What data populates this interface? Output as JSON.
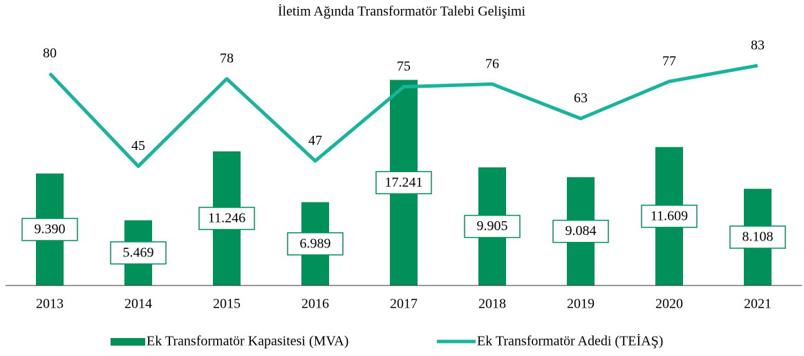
{
  "chart_data": {
    "type": "bar",
    "title": "İletim Ağında Transformatör Talebi Gelişimi",
    "categories": [
      "2013",
      "2014",
      "2015",
      "2016",
      "2017",
      "2018",
      "2019",
      "2020",
      "2021"
    ],
    "series": [
      {
        "name": "Ek Transformatör Kapasitesi (MVA)",
        "type": "bar",
        "color": "#00905a",
        "values": [
          9390,
          5469,
          11246,
          6989,
          17241,
          9905,
          9084,
          11609,
          8108
        ],
        "value_labels": [
          "9.390",
          "5.469",
          "11.246",
          "6.989",
          "17.241",
          "9.905",
          "9.084",
          "11.609",
          "8.108"
        ]
      },
      {
        "name": "Ek Transformatör Adedi (TEİAŞ)",
        "type": "line",
        "axis": "y2",
        "color": "#1ab39c",
        "values": [
          80,
          45,
          78,
          47,
          75,
          76,
          63,
          77,
          83
        ]
      }
    ],
    "ylim": [
      0,
      20000
    ],
    "y2lim": [
      0,
      90
    ],
    "legend": "bottom"
  }
}
